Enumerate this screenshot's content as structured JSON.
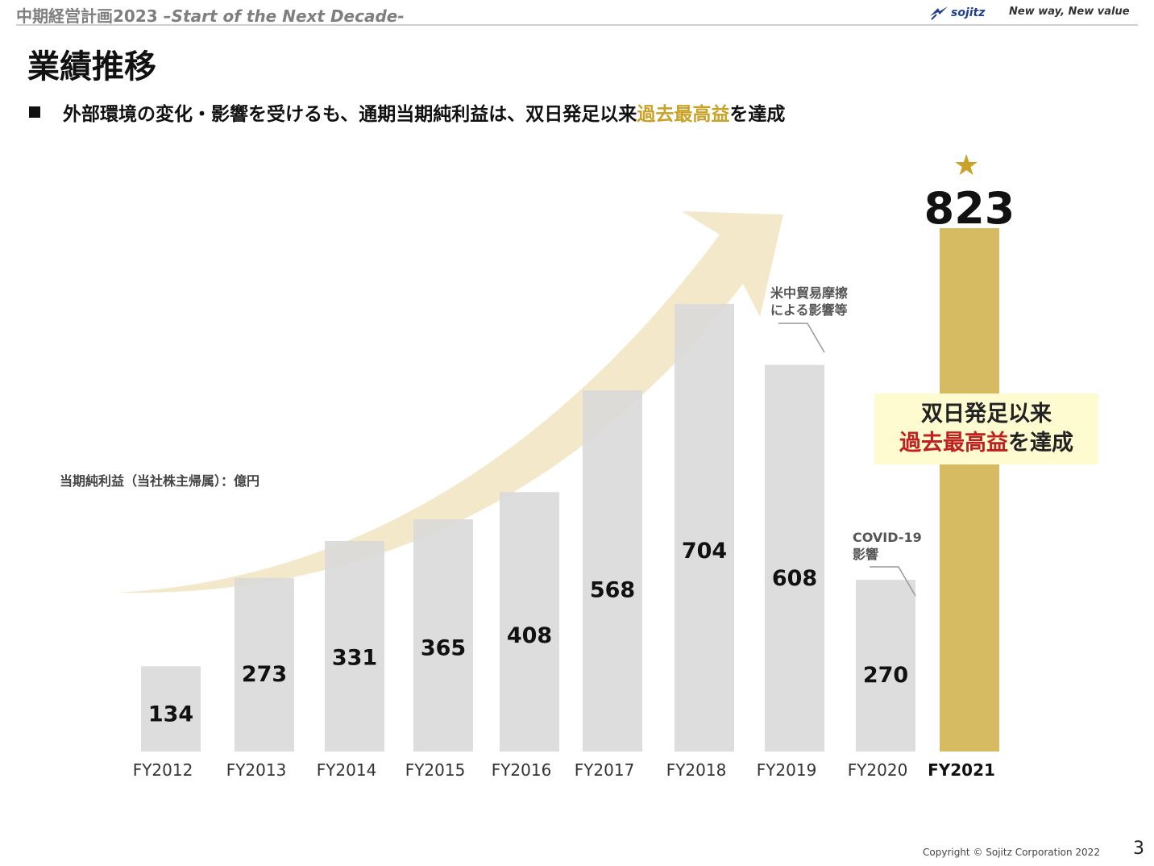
{
  "header": {
    "title_jp": "中期経営計画2023",
    "title_en": " –Start of the Next Decade-",
    "logo_text": "sojitz",
    "slogan": "New way, New value"
  },
  "page": {
    "heading": "業績推移",
    "bullet_pre": "外部環境の変化・影響を受けるも、通期当期純利益は、双日発足以来",
    "bullet_highlight": "過去最高益",
    "bullet_post": "を達成"
  },
  "annotations": {
    "trade_friction": [
      "米中貿易摩擦",
      "による影響等"
    ],
    "covid": [
      "COVID-19",
      "影響"
    ],
    "achievement_line1": "双日発足以来",
    "achievement_highlight": "過去最高益",
    "achievement_post": "を達成"
  },
  "colors": {
    "bar_gray": "#d9d9d9",
    "bar_gold": "#d6bb62",
    "arrow": "#efe2b8",
    "gold_text": "#c9a227",
    "red_text": "#c0201f"
  },
  "footer": {
    "copyright": "Copyright © Sojitz Corporation 2022",
    "page_number": "3"
  },
  "chart_data": {
    "type": "bar",
    "title": "",
    "ylabel": "当期純利益（当社株主帰属）：億円",
    "categories": [
      "FY2012",
      "FY2013",
      "FY2014",
      "FY2015",
      "FY2016",
      "FY2017",
      "FY2018",
      "FY2019",
      "FY2020",
      "FY2021"
    ],
    "values": [
      134,
      273,
      331,
      365,
      408,
      568,
      704,
      608,
      270,
      823
    ],
    "highlight_index": 9,
    "ylim": [
      0,
      823
    ],
    "grid": false,
    "legend": "none"
  }
}
